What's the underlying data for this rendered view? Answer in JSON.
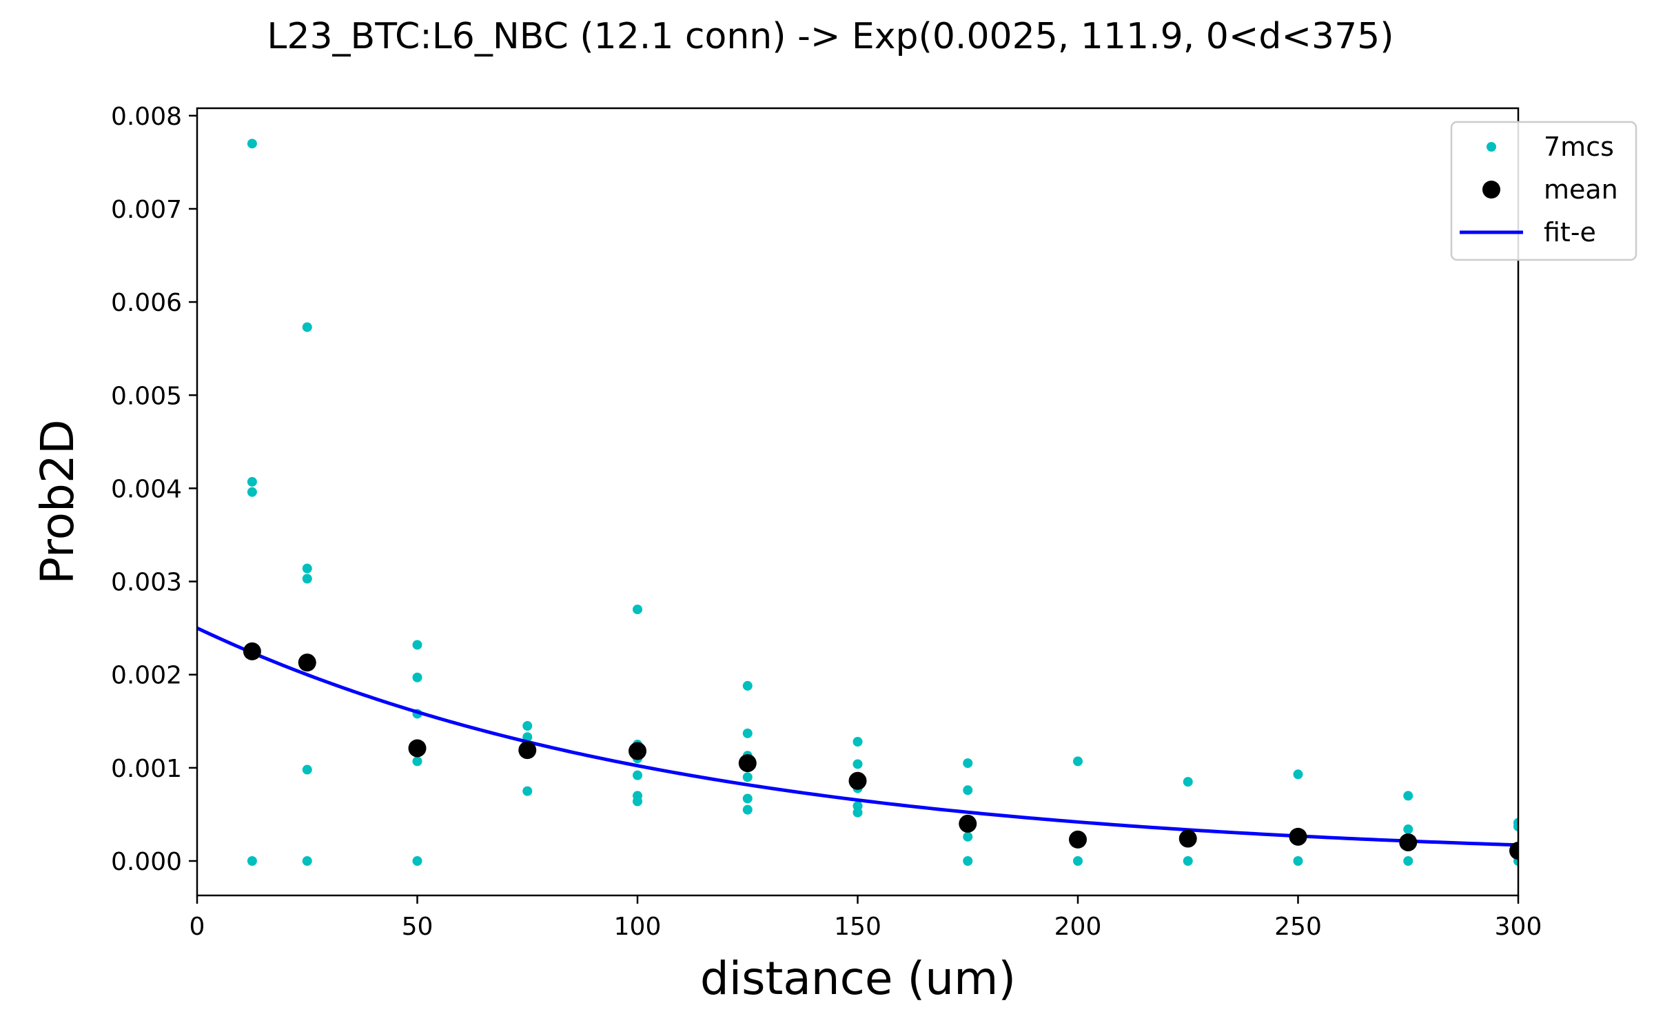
{
  "chart_data": {
    "type": "scatter",
    "title": "L23_BTC:L6_NBC (12.1 conn) -> Exp(0.0025, 111.9, 0<d<375)",
    "xlabel": "distance (um)",
    "ylabel": "Prob2D",
    "xlim": [
      0,
      300
    ],
    "ylim": [
      -0.00037,
      0.00808
    ],
    "xticks": [
      0,
      50,
      100,
      150,
      200,
      250,
      300
    ],
    "xtick_labels": [
      "0",
      "50",
      "100",
      "150",
      "200",
      "250",
      "300"
    ],
    "yticks": [
      0,
      0.001,
      0.002,
      0.003,
      0.004,
      0.005,
      0.006,
      0.007,
      0.008
    ],
    "ytick_labels": [
      "0.000",
      "0.001",
      "0.002",
      "0.003",
      "0.004",
      "0.005",
      "0.006",
      "0.007",
      "0.008"
    ],
    "grid": false,
    "legend_position": "top-right",
    "series": [
      {
        "name": "7mcs",
        "kind": "points",
        "color": "#00bfbf",
        "points": [
          [
            12.5,
            0.0077
          ],
          [
            12.5,
            0.00407
          ],
          [
            12.5,
            0.00396
          ],
          [
            12.5,
            0.0
          ],
          [
            25,
            0.00573
          ],
          [
            25,
            0.00314
          ],
          [
            25,
            0.00303
          ],
          [
            25,
            0.00098
          ],
          [
            25,
            0.0
          ],
          [
            50,
            0.00232
          ],
          [
            50,
            0.00197
          ],
          [
            50,
            0.00158
          ],
          [
            50,
            0.00107
          ],
          [
            50,
            0.0
          ],
          [
            75,
            0.00145
          ],
          [
            75,
            0.00133
          ],
          [
            75,
            0.00125
          ],
          [
            75,
            0.00116
          ],
          [
            75,
            0.00075
          ],
          [
            100,
            0.0027
          ],
          [
            100,
            0.00125
          ],
          [
            100,
            0.0011
          ],
          [
            100,
            0.00092
          ],
          [
            100,
            0.0007
          ],
          [
            100,
            0.00064
          ],
          [
            125,
            0.00188
          ],
          [
            125,
            0.00137
          ],
          [
            125,
            0.00113
          ],
          [
            125,
            0.0009
          ],
          [
            125,
            0.00067
          ],
          [
            125,
            0.00055
          ],
          [
            150,
            0.00128
          ],
          [
            150,
            0.00104
          ],
          [
            150,
            0.00078
          ],
          [
            150,
            0.00059
          ],
          [
            150,
            0.00052
          ],
          [
            175,
            0.00105
          ],
          [
            175,
            0.00076
          ],
          [
            175,
            0.00026
          ],
          [
            175,
            0.0
          ],
          [
            200,
            0.00107
          ],
          [
            200,
            0.0
          ],
          [
            225,
            0.00085
          ],
          [
            225,
            0.0
          ],
          [
            250,
            0.00093
          ],
          [
            250,
            0.0
          ],
          [
            275,
            0.0007
          ],
          [
            275,
            0.00034
          ],
          [
            275,
            0.0
          ],
          [
            300,
            0.00041
          ],
          [
            300,
            0.00037
          ],
          [
            300,
            0.0
          ]
        ]
      },
      {
        "name": "mean",
        "kind": "points",
        "color": "#000000",
        "points": [
          [
            12.5,
            0.00225
          ],
          [
            25,
            0.00213
          ],
          [
            50,
            0.00121
          ],
          [
            75,
            0.00119
          ],
          [
            100,
            0.00118
          ],
          [
            125,
            0.00105
          ],
          [
            150,
            0.00086
          ],
          [
            175,
            0.0004
          ],
          [
            200,
            0.00023
          ],
          [
            225,
            0.00024
          ],
          [
            250,
            0.00026
          ],
          [
            275,
            0.0002
          ],
          [
            300,
            0.00011
          ]
        ]
      },
      {
        "name": "fit-e",
        "kind": "line",
        "color": "#0000ff",
        "function": "exp",
        "amplitude": 0.0025,
        "length_constant": 111.9,
        "x_range": [
          0,
          300
        ]
      }
    ]
  }
}
